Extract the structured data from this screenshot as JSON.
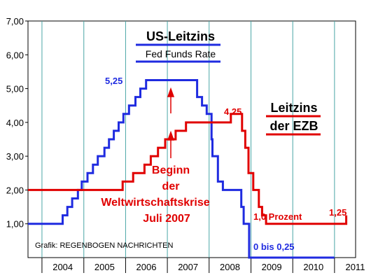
{
  "chart_data": {
    "type": "line",
    "ylim": [
      0,
      7
    ],
    "y_ticks": [
      "7,00",
      "6,00",
      "5,00",
      "4,00",
      "3,00",
      "2,00",
      "1,00"
    ],
    "x_ticks": [
      "2004",
      "2005",
      "2006",
      "2007",
      "2008",
      "2009",
      "2010",
      "2011"
    ],
    "grid": "vertical year lines",
    "series": [
      {
        "name": "US-Leitzins",
        "color": "#1f2be0",
        "points": [
          [
            "2003-01-01",
            1.0
          ],
          [
            "2004-06-30",
            1.25
          ],
          [
            "2004-08-10",
            1.5
          ],
          [
            "2004-09-21",
            1.75
          ],
          [
            "2004-11-10",
            2.0
          ],
          [
            "2004-12-14",
            2.25
          ],
          [
            "2005-02-02",
            2.5
          ],
          [
            "2005-03-22",
            2.75
          ],
          [
            "2005-05-03",
            3.0
          ],
          [
            "2005-06-30",
            3.25
          ],
          [
            "2005-08-09",
            3.5
          ],
          [
            "2005-09-20",
            3.75
          ],
          [
            "2005-11-01",
            4.0
          ],
          [
            "2005-12-13",
            4.25
          ],
          [
            "2006-01-31",
            4.5
          ],
          [
            "2006-03-28",
            4.75
          ],
          [
            "2006-05-10",
            5.0
          ],
          [
            "2006-06-29",
            5.25
          ],
          [
            "2007-09-18",
            4.75
          ],
          [
            "2007-10-31",
            4.5
          ],
          [
            "2007-12-11",
            4.25
          ],
          [
            "2008-01-22",
            3.5
          ],
          [
            "2008-01-30",
            3.0
          ],
          [
            "2008-03-18",
            2.25
          ],
          [
            "2008-04-30",
            2.0
          ],
          [
            "2008-10-08",
            1.5
          ],
          [
            "2008-10-29",
            1.0
          ],
          [
            "2008-12-16",
            0.0
          ],
          [
            "2010-12-31",
            0.0
          ]
        ]
      },
      {
        "name": "Leitzins der EZB",
        "color": "#e00000",
        "points": [
          [
            "2003-01-01",
            2.0
          ],
          [
            "2005-12-06",
            2.25
          ],
          [
            "2006-03-08",
            2.5
          ],
          [
            "2006-06-15",
            2.75
          ],
          [
            "2006-08-09",
            3.0
          ],
          [
            "2006-10-11",
            3.25
          ],
          [
            "2006-12-13",
            3.5
          ],
          [
            "2007-03-14",
            3.75
          ],
          [
            "2007-06-13",
            4.0
          ],
          [
            "2008-07-09",
            4.25
          ],
          [
            "2008-10-15",
            3.75
          ],
          [
            "2008-11-12",
            3.25
          ],
          [
            "2008-12-10",
            2.5
          ],
          [
            "2009-01-21",
            2.0
          ],
          [
            "2009-03-11",
            1.5
          ],
          [
            "2009-04-08",
            1.25
          ],
          [
            "2009-05-13",
            1.0
          ],
          [
            "2011-04-13",
            1.25
          ]
        ]
      }
    ],
    "annotations": {
      "us_title": "US-Leitzins",
      "us_subtitle": "Fed Funds Rate",
      "ezb_title_line1": "Leitzins",
      "ezb_title_line2": "der EZB",
      "us_peak_label": "5,25",
      "ezb_peak_label": "4,25",
      "ezb_low_label": "1,0 Prozent",
      "ezb_end_label": "1,25",
      "us_low_label": "0 bis 0,25",
      "crisis_line1": "Beginn",
      "crisis_line2": "der",
      "crisis_line3": "Weltwirtschaftskrise",
      "crisis_line4": "Juli 2007",
      "credit": "Grafik: REGENBOGEN NACHRICHTEN"
    }
  }
}
